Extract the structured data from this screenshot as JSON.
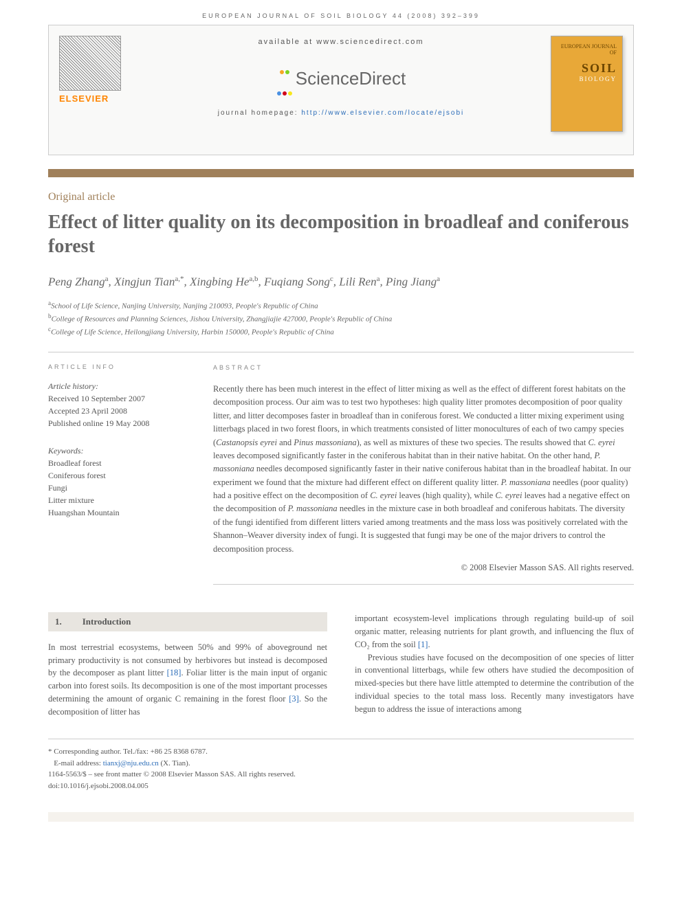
{
  "headerLine": "EUROPEAN JOURNAL OF SOIL BIOLOGY 44 (2008) 392–399",
  "banner": {
    "available": "available at www.sciencedirect.com",
    "sdName": "ScienceDirect",
    "homepagePrefix": "journal homepage: ",
    "homepageUrl": "http://www.elsevier.com/locate/ejsobi",
    "elsevier": "ELSEVIER",
    "coverTop": "EUROPEAN JOURNAL OF",
    "coverSoil": "SOIL",
    "coverBiology": "BIOLOGY"
  },
  "articleType": "Original article",
  "title": "Effect of litter quality on its decomposition in broadleaf and coniferous forest",
  "authors": [
    {
      "name": "Peng Zhang",
      "sup": "a"
    },
    {
      "name": "Xingjun Tian",
      "sup": "a,*"
    },
    {
      "name": "Xingbing He",
      "sup": "a,b"
    },
    {
      "name": "Fuqiang Song",
      "sup": "c"
    },
    {
      "name": "Lili Ren",
      "sup": "a"
    },
    {
      "name": "Ping Jiang",
      "sup": "a"
    }
  ],
  "affiliations": [
    {
      "sup": "a",
      "text": "School of Life Science, Nanjing University, Nanjing 210093, People's Republic of China"
    },
    {
      "sup": "b",
      "text": "College of Resources and Planning Sciences, Jishou University, Zhangjiajie 427000, People's Republic of China"
    },
    {
      "sup": "c",
      "text": "College of Life Science, Heilongjiang University, Harbin 150000, People's Republic of China"
    }
  ],
  "articleInfo": {
    "label": "ARTICLE INFO",
    "historyLabel": "Article history:",
    "received": "Received 10 September 2007",
    "accepted": "Accepted 23 April 2008",
    "published": "Published online 19 May 2008",
    "keywordsLabel": "Keywords:",
    "keywords": [
      "Broadleaf forest",
      "Coniferous forest",
      "Fungi",
      "Litter mixture",
      "Huangshan Mountain"
    ]
  },
  "abstract": {
    "label": "ABSTRACT",
    "text": "Recently there has been much interest in the effect of litter mixing as well as the effect of different forest habitats on the decomposition process. Our aim was to test two hypotheses: high quality litter promotes decomposition of poor quality litter, and litter decomposes faster in broadleaf than in coniferous forest. We conducted a litter mixing experiment using litterbags placed in two forest floors, in which treatments consisted of litter monocultures of each of two campy species (Castanopsis eyrei and Pinus massoniana), as well as mixtures of these two species. The results showed that C. eyrei leaves decomposed significantly faster in the coniferous habitat than in their native habitat. On the other hand, P. massoniana needles decomposed significantly faster in their native coniferous habitat than in the broadleaf habitat. In our experiment we found that the mixture had different effect on different quality litter. P. massoniana needles (poor quality) had a positive effect on the decomposition of C. eyrei leaves (high quality), while C. eyrei leaves had a negative effect on the decomposition of P. massoniana needles in the mixture case in both broadleaf and coniferous habitats. The diversity of the fungi identified from different litters varied among treatments and the mass loss was positively correlated with the Shannon–Weaver diversity index of fungi. It is suggested that fungi may be one of the major drivers to control the decomposition process.",
    "copyright": "© 2008 Elsevier Masson SAS. All rights reserved."
  },
  "section1": {
    "num": "1.",
    "title": "Introduction",
    "leftPara": "In most terrestrial ecosystems, between 50% and 99% of aboveground net primary productivity is not consumed by herbivores but instead is decomposed by the decomposer as plant litter [18]. Foliar litter is the main input of organic carbon into forest soils. Its decomposition is one of the most important processes determining the amount of organic C remaining in the forest floor [3]. So the decomposition of litter has",
    "rightPara1": "important ecosystem-level implications through regulating build-up of soil organic matter, releasing nutrients for plant growth, and influencing the flux of CO₂ from the soil [1].",
    "rightPara2": "Previous studies have focused on the decomposition of one species of litter in conventional litterbags, while few others have studied the decomposition of mixed-species but there have little attempted to determine the contribution of the individual species to the total mass loss. Recently many investigators have begun to address the issue of interactions among"
  },
  "footer": {
    "corresponding": "* Corresponding author. Tel./fax: +86 25 8368 6787.",
    "emailLabel": "E-mail address: ",
    "email": "tianxj@nju.edu.cn",
    "emailSuffix": " (X. Tian).",
    "issn": "1164-5563/$ – see front matter © 2008 Elsevier Masson SAS. All rights reserved.",
    "doi": "doi:10.1016/j.ejsobi.2008.04.005"
  },
  "colors": {
    "brown": "#a0805a",
    "orange": "#ff8500",
    "link": "#2a6cb8",
    "coverBg": "#e8a838"
  }
}
